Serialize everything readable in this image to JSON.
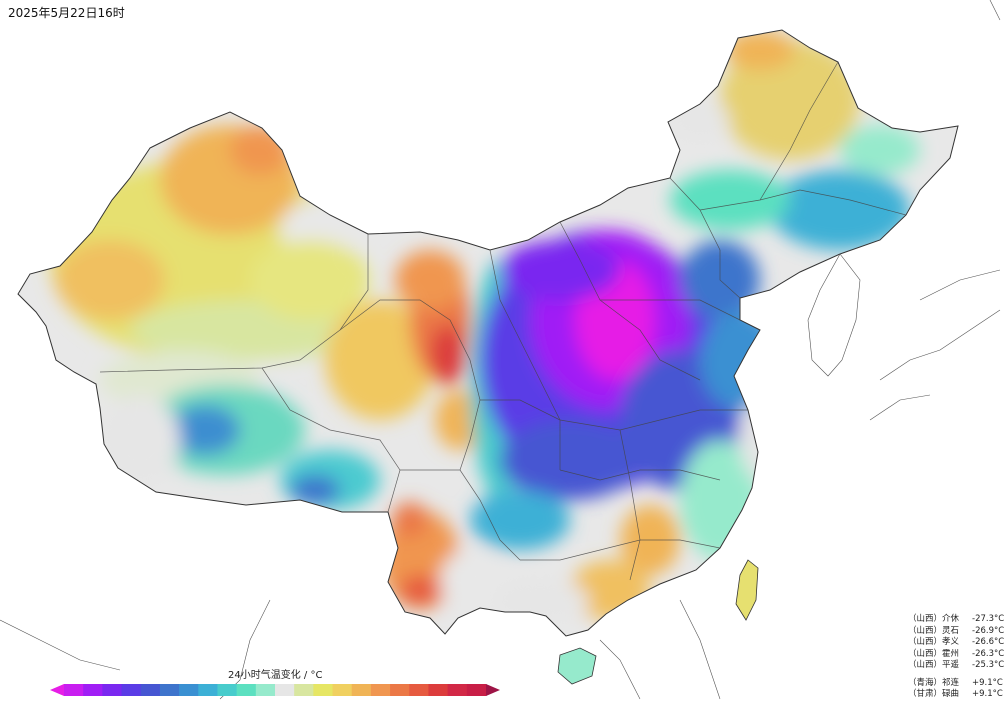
{
  "timestamp": "2025年5月22日16时",
  "legend": {
    "title": "24小时气温变化 / °C",
    "colors": [
      "#e61ee6",
      "#c81ef0",
      "#a01ef5",
      "#7a28f0",
      "#5a3ce6",
      "#4656d2",
      "#3e74cc",
      "#3a90d2",
      "#3cb0d6",
      "#48cccc",
      "#5ce0c0",
      "#96eacc",
      "#e6e6e6",
      "#d8e6a0",
      "#e6e664",
      "#f0d060",
      "#f0b456",
      "#f09650",
      "#eb7846",
      "#e65a40",
      "#dc3c3c",
      "#d22846",
      "#c81e46",
      "#9e1446"
    ]
  },
  "cooling_list": [
    {
      "province": "（山西）",
      "city": "介休",
      "value": "-27.3°C"
    },
    {
      "province": "（山西）",
      "city": "灵石",
      "value": "-26.9°C"
    },
    {
      "province": "（山西）",
      "city": "孝义",
      "value": "-26.6°C"
    },
    {
      "province": "（山西）",
      "city": "霍州",
      "value": "-26.3°C"
    },
    {
      "province": "（山西）",
      "city": "平遥",
      "value": "-25.3°C"
    }
  ],
  "warming_list": [
    {
      "province": "（青海）",
      "city": "祁连",
      "value": "+9.1°C"
    },
    {
      "province": "（甘肃）",
      "city": "碌曲",
      "value": "+9.1°C"
    }
  ]
}
